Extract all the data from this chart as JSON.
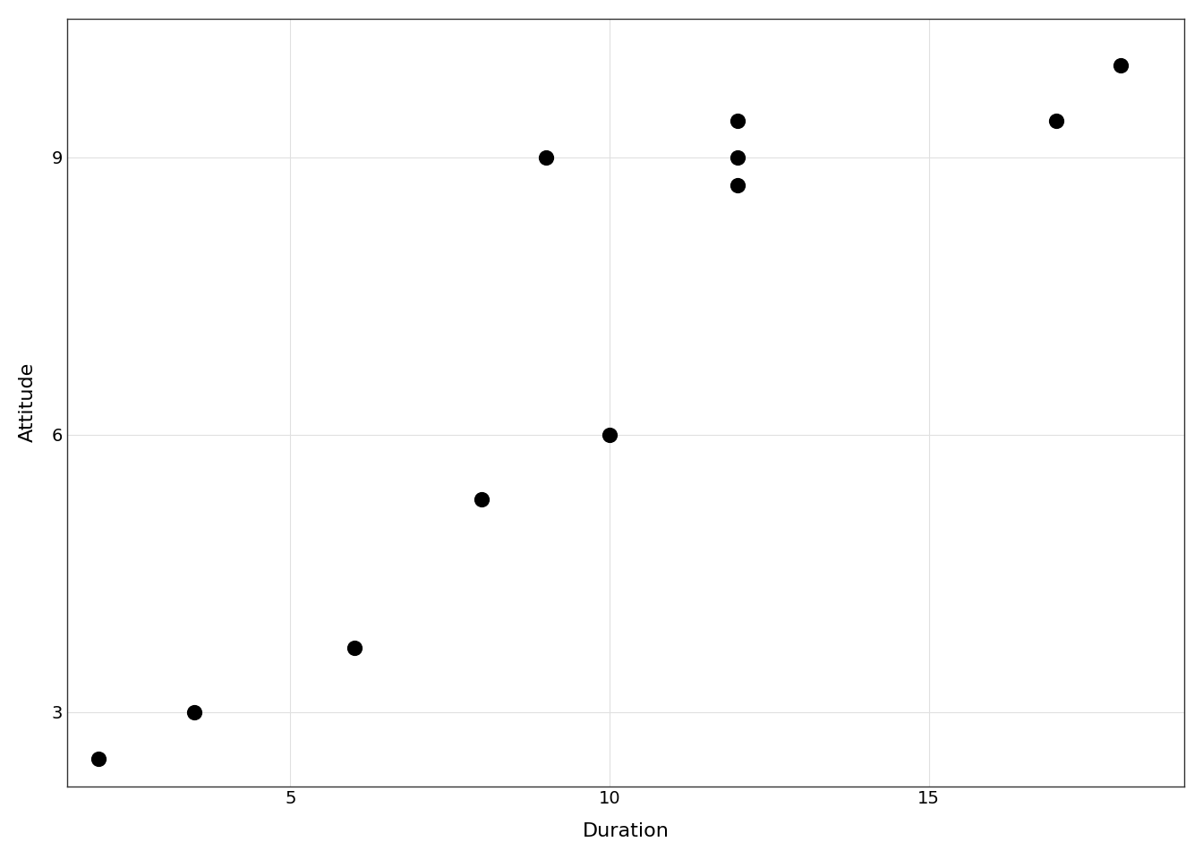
{
  "x": [
    2,
    3.5,
    6,
    8,
    9,
    10,
    12,
    12,
    12,
    17,
    18
  ],
  "y": [
    2.5,
    3.0,
    3.7,
    5.3,
    9.0,
    6.0,
    9.4,
    8.7,
    9.0,
    9.4,
    10.0
  ],
  "xlabel": "Duration",
  "ylabel": "Attitude",
  "xlim": [
    1.5,
    19
  ],
  "ylim": [
    2.2,
    10.5
  ],
  "xticks": [
    5,
    10,
    15
  ],
  "yticks": [
    3,
    6,
    9
  ],
  "background_color": "#ffffff",
  "panel_background": "#ffffff",
  "grid_color": "#e0e0e0",
  "point_color": "#000000",
  "point_size": 130,
  "xlabel_fontsize": 16,
  "ylabel_fontsize": 16,
  "tick_fontsize": 14,
  "spine_color": "#333333",
  "spine_linewidth": 1.0
}
